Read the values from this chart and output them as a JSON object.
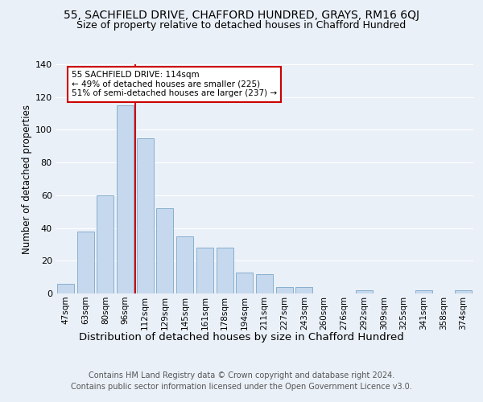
{
  "title1": "55, SACHFIELD DRIVE, CHAFFORD HUNDRED, GRAYS, RM16 6QJ",
  "title2": "Size of property relative to detached houses in Chafford Hundred",
  "xlabel": "Distribution of detached houses by size in Chafford Hundred",
  "ylabel": "Number of detached properties",
  "footer1": "Contains HM Land Registry data © Crown copyright and database right 2024.",
  "footer2": "Contains public sector information licensed under the Open Government Licence v3.0.",
  "categories": [
    "47sqm",
    "63sqm",
    "80sqm",
    "96sqm",
    "112sqm",
    "129sqm",
    "145sqm",
    "161sqm",
    "178sqm",
    "194sqm",
    "211sqm",
    "227sqm",
    "243sqm",
    "260sqm",
    "276sqm",
    "292sqm",
    "309sqm",
    "325sqm",
    "341sqm",
    "358sqm",
    "374sqm"
  ],
  "values": [
    6,
    38,
    60,
    115,
    95,
    52,
    35,
    28,
    28,
    13,
    12,
    4,
    4,
    0,
    0,
    2,
    0,
    0,
    2,
    0,
    2
  ],
  "bar_color": "#c5d8ed",
  "bar_edge_color": "#7ba7c9",
  "vline_color": "#cc0000",
  "annotation_text": "55 SACHFIELD DRIVE: 114sqm\n← 49% of detached houses are smaller (225)\n51% of semi-detached houses are larger (237) →",
  "annotation_box_color": "white",
  "annotation_box_edge": "#cc0000",
  "ylim": [
    0,
    140
  ],
  "yticks": [
    0,
    20,
    40,
    60,
    80,
    100,
    120,
    140
  ],
  "bg_color": "#eaf0f8",
  "plot_bg_color": "#eaf0f8",
  "title1_fontsize": 10,
  "title2_fontsize": 9,
  "xlabel_fontsize": 9.5,
  "ylabel_fontsize": 8.5,
  "footer_fontsize": 7
}
